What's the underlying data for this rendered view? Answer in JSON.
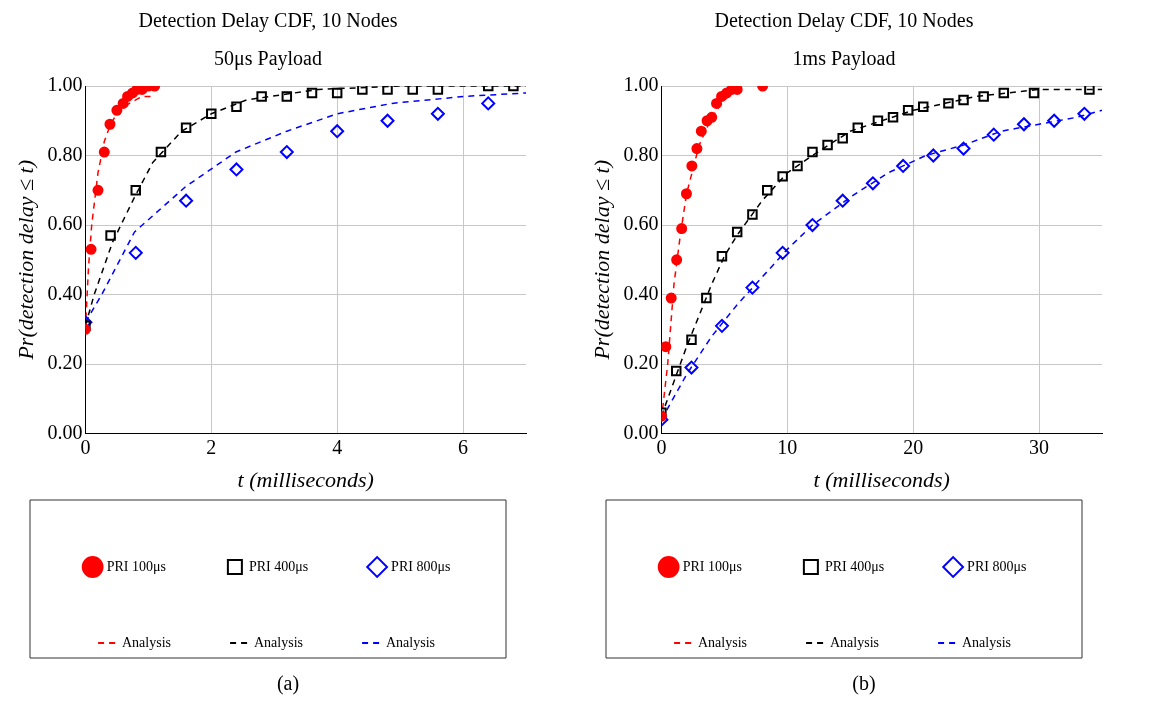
{
  "chart_data": [
    {
      "type": "scatter",
      "title": "Detection Delay CDF, 10 Nodes",
      "subtitle": "50μs Payload",
      "xlabel": "t (milliseconds)",
      "ylabel": "Pr(detection delay ≤ t)",
      "annotations": [
        "(a)"
      ],
      "xlim": [
        0,
        7
      ],
      "xticks": [
        0,
        2,
        4,
        6
      ],
      "ylim": [
        0,
        1
      ],
      "yticks": [
        {
          "value": 0,
          "label": "0.00"
        },
        {
          "value": 0.2,
          "label": "0.20"
        },
        {
          "value": 0.4,
          "label": "0.40"
        },
        {
          "value": 0.6,
          "label": "0.60"
        },
        {
          "value": 0.8,
          "label": "0.80"
        },
        {
          "value": 1,
          "label": "1.00"
        }
      ],
      "grid": true,
      "legend": "bottom",
      "series": [
        {
          "name": "PRI 100μs",
          "color": "#ff0000",
          "marker": "circle",
          "x": [
            0,
            0.09,
            0.2,
            0.3,
            0.39,
            0.5,
            0.6,
            0.67,
            0.75,
            0.82,
            0.9,
            1.0,
            1.1
          ],
          "values": [
            0.3,
            0.53,
            0.7,
            0.81,
            0.89,
            0.93,
            0.95,
            0.97,
            0.98,
            0.99,
            0.99,
            1.0,
            1.0
          ]
        },
        {
          "name": "PRI 400μs",
          "color": "#000000",
          "marker": "square",
          "x": [
            0,
            0.4,
            0.8,
            1.2,
            1.6,
            2.0,
            2.4,
            2.8,
            3.2,
            3.6,
            4.0,
            4.4,
            4.8,
            5.2,
            5.6,
            6.4,
            6.8
          ],
          "values": [
            0.31,
            0.57,
            0.7,
            0.81,
            0.88,
            0.92,
            0.94,
            0.97,
            0.97,
            0.98,
            0.98,
            0.99,
            0.99,
            0.99,
            0.99,
            1.0,
            1.0
          ]
        },
        {
          "name": "PRI 800μs",
          "color": "#0000ff",
          "marker": "diamond",
          "x": [
            0,
            0.8,
            1.6,
            2.4,
            3.2,
            4.0,
            4.8,
            5.6,
            6.4
          ],
          "values": [
            0.32,
            0.52,
            0.67,
            0.76,
            0.81,
            0.87,
            0.9,
            0.92,
            0.95
          ]
        },
        {
          "name": "Analysis",
          "type": "line",
          "color": "#ff0000",
          "marker": "none",
          "line_style": "dashed",
          "x": [
            0,
            0.05,
            0.1,
            0.2,
            0.3,
            0.4,
            0.5,
            0.6,
            0.7,
            0.8,
            0.9,
            1.07
          ],
          "values": [
            0.3,
            0.48,
            0.6,
            0.75,
            0.84,
            0.89,
            0.92,
            0.94,
            0.95,
            0.96,
            0.97,
            0.97
          ]
        },
        {
          "name": "Analysis",
          "type": "line",
          "color": "#000000",
          "marker": "none",
          "line_style": "dashed",
          "x": [
            0,
            0.14,
            0.43,
            0.78,
            1.07,
            1.53,
            2.0,
            2.56,
            3.7,
            5,
            7
          ],
          "values": [
            0.31,
            0.4,
            0.55,
            0.68,
            0.78,
            0.87,
            0.92,
            0.96,
            0.99,
            1.0,
            1.0
          ]
        },
        {
          "name": "Analysis",
          "type": "line",
          "color": "#0000ff",
          "marker": "none",
          "line_style": "dashed",
          "x": [
            0,
            0.26,
            0.78,
            1.59,
            2.39,
            3.2,
            4.0,
            4.87,
            6.02,
            7
          ],
          "values": [
            0.32,
            0.4,
            0.58,
            0.71,
            0.81,
            0.87,
            0.92,
            0.95,
            0.97,
            0.98
          ]
        }
      ]
    },
    {
      "type": "scatter",
      "title": "Detection Delay CDF, 10 Nodes",
      "subtitle": "1ms Payload",
      "xlabel": "t (milliseconds)",
      "ylabel": "Pr(detection delay ≤ t)",
      "annotations": [
        "(b)"
      ],
      "xlim": [
        0,
        35
      ],
      "xticks": [
        0,
        10,
        20,
        30
      ],
      "ylim": [
        0,
        1
      ],
      "yticks": [
        {
          "value": 0,
          "label": "0.00"
        },
        {
          "value": 0.2,
          "label": "0.20"
        },
        {
          "value": 0.4,
          "label": "0.40"
        },
        {
          "value": 0.6,
          "label": "0.60"
        },
        {
          "value": 0.8,
          "label": "0.80"
        },
        {
          "value": 1,
          "label": "1.00"
        }
      ],
      "grid": true,
      "legend": "bottom",
      "series": [
        {
          "name": "PRI 100μs",
          "color": "#ff0000",
          "marker": "circle",
          "x": [
            0,
            0.35,
            0.78,
            1.21,
            1.61,
            1.99,
            2.42,
            2.82,
            3.17,
            3.63,
            4.0,
            4.38,
            4.78,
            5.19,
            5.59,
            6.02,
            8.04
          ],
          "values": [
            0.05,
            0.25,
            0.39,
            0.5,
            0.59,
            0.69,
            0.77,
            0.82,
            0.87,
            0.9,
            0.91,
            0.95,
            0.97,
            0.98,
            0.99,
            0.99,
            1.0
          ]
        },
        {
          "name": "PRI 400μs",
          "color": "#000000",
          "marker": "square",
          "x": [
            0,
            1.18,
            2.39,
            3.57,
            4.81,
            6.02,
            7.23,
            8.41,
            9.63,
            10.81,
            12.0,
            13.2,
            14.4,
            15.6,
            17.2,
            18.4,
            19.6,
            20.8,
            22.8,
            24.0,
            25.6,
            27.2,
            29.6,
            34.0
          ],
          "values": [
            0.06,
            0.18,
            0.27,
            0.39,
            0.51,
            0.58,
            0.63,
            0.7,
            0.74,
            0.77,
            0.81,
            0.83,
            0.85,
            0.88,
            0.9,
            0.91,
            0.93,
            0.94,
            0.95,
            0.96,
            0.97,
            0.98,
            0.98,
            0.99
          ]
        },
        {
          "name": "PRI 800μs",
          "color": "#0000ff",
          "marker": "diamond",
          "x": [
            0,
            2.39,
            4.81,
            7.23,
            9.63,
            12.0,
            14.4,
            16.8,
            19.2,
            21.6,
            24.0,
            26.4,
            28.8,
            31.2,
            33.6
          ],
          "values": [
            0.04,
            0.19,
            0.31,
            0.42,
            0.52,
            0.6,
            0.67,
            0.72,
            0.77,
            0.8,
            0.82,
            0.86,
            0.89,
            0.9,
            0.92
          ]
        },
        {
          "name": "Analysis",
          "type": "line",
          "color": "#ff0000",
          "marker": "none",
          "line_style": "dashed",
          "x": [
            0,
            0.5,
            1,
            1.5,
            2,
            3,
            4,
            5,
            6
          ],
          "values": [
            0.04,
            0.2,
            0.43,
            0.57,
            0.69,
            0.83,
            0.91,
            0.96,
            0.99
          ]
        },
        {
          "name": "Analysis",
          "type": "line",
          "color": "#000000",
          "marker": "none",
          "line_style": "dashed",
          "x": [
            0,
            1,
            2,
            3,
            4,
            5,
            6,
            8,
            10,
            12,
            15,
            20,
            25,
            30,
            35
          ],
          "values": [
            0.05,
            0.15,
            0.25,
            0.34,
            0.43,
            0.51,
            0.57,
            0.67,
            0.75,
            0.8,
            0.87,
            0.93,
            0.97,
            0.99,
            0.99
          ]
        },
        {
          "name": "Analysis",
          "type": "line",
          "color": "#0000ff",
          "marker": "none",
          "line_style": "dashed",
          "x": [
            0,
            2,
            4,
            6,
            8,
            10,
            12,
            15,
            18,
            21,
            24,
            27,
            30,
            33,
            35
          ],
          "values": [
            0.04,
            0.17,
            0.28,
            0.37,
            0.45,
            0.53,
            0.6,
            0.68,
            0.75,
            0.8,
            0.83,
            0.87,
            0.89,
            0.91,
            0.93
          ]
        }
      ]
    }
  ]
}
